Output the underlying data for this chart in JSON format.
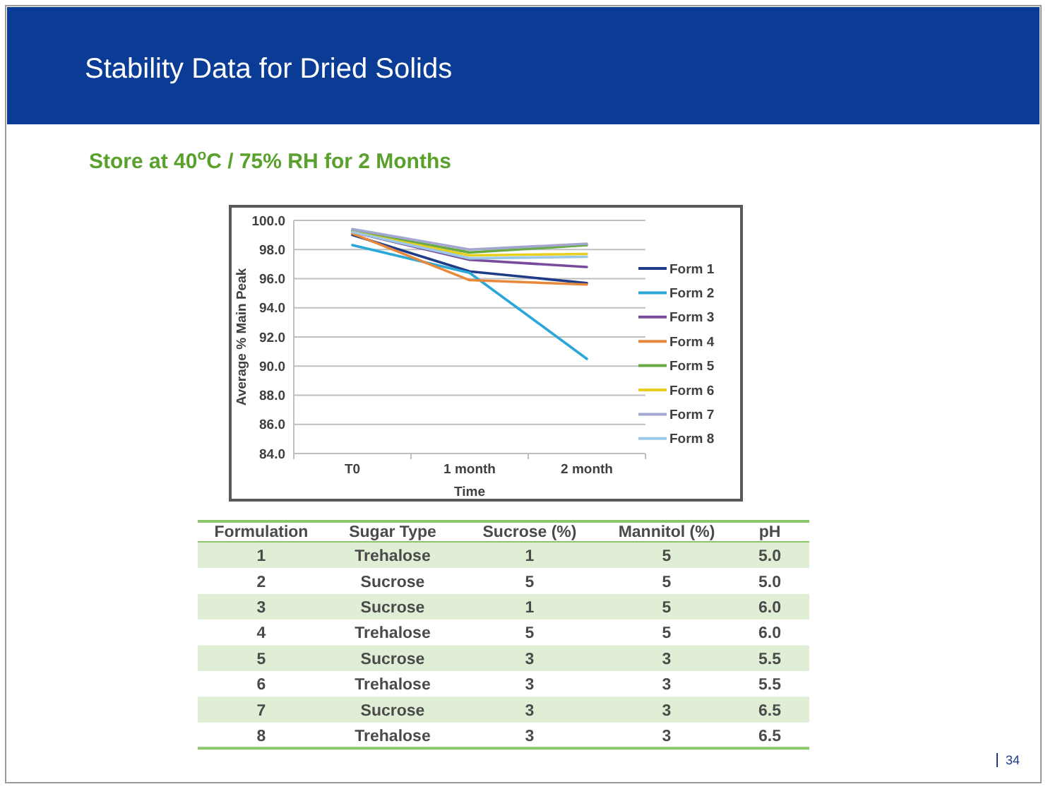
{
  "chart_data": [
    {
      "type": "line",
      "title": "Stability Data for Dried Solids",
      "subtitle": "Store at 40$^{o}$C / 75% RH for 2 Months",
      "xlabel": "Time",
      "ylabel": "Average % Main Peak",
      "categories": [
        "T0",
        "1 month",
        "2 month"
      ],
      "series": [
        {
          "name": "Form 1",
          "color": "#1f3c88",
          "values": [
            99.0,
            96.5,
            95.7
          ]
        },
        {
          "name": "Form 2",
          "color": "#2aa7d8",
          "values": [
            98.3,
            96.4,
            90.5
          ]
        },
        {
          "name": "Form 3",
          "color": "#7a4b9a",
          "values": [
            99.2,
            97.3,
            96.8
          ]
        },
        {
          "name": "Form 4",
          "color": "#e8883a",
          "values": [
            99.1,
            95.9,
            95.6
          ]
        },
        {
          "name": "Form 5",
          "color": "#6aaa45",
          "values": [
            99.3,
            97.8,
            98.3
          ]
        },
        {
          "name": "Form 6",
          "color": "#e8cf1f",
          "values": [
            99.2,
            97.6,
            97.7
          ]
        },
        {
          "name": "Form 7",
          "color": "#a3a7cf",
          "values": [
            99.4,
            98.0,
            98.4
          ]
        },
        {
          "name": "Form 8",
          "color": "#9cc8e8",
          "values": [
            99.2,
            97.4,
            97.5
          ]
        }
      ],
      "ylim": [
        84,
        100
      ],
      "yticks": [
        {
          "value": 84,
          "label": "84.0"
        },
        {
          "value": 86,
          "label": "86.0"
        },
        {
          "value": 88,
          "label": "88.0"
        },
        {
          "value": 90,
          "label": "90.0"
        },
        {
          "value": 92,
          "label": "92.0"
        },
        {
          "value": 94,
          "label": "94.0"
        },
        {
          "value": 96,
          "label": "96.0"
        },
        {
          "value": 98,
          "label": "98.0"
        },
        {
          "value": 100,
          "label": "100.0"
        }
      ],
      "grid": "y",
      "legend": "right",
      "marker": "none",
      "line_style": "solid",
      "annotations": [
        "34"
      ]
    },
    {
      "type": "heatmap",
      "ylabel": "Formulation",
      "categories": [
        "Sugar Type",
        "Sucrose (%)",
        "Mannitol (%)",
        "pH"
      ],
      "y_categories": [
        "1",
        "2",
        "3",
        "4",
        "5",
        "6",
        "7",
        "8"
      ],
      "cells": [
        [
          null,
          null,
          null,
          null
        ],
        [
          null,
          null,
          null,
          null
        ],
        [
          null,
          null,
          null,
          null
        ],
        [
          null,
          null,
          null,
          null
        ],
        [
          null,
          null,
          null,
          null
        ],
        [
          null,
          null,
          null,
          null
        ],
        [
          null,
          null,
          null,
          null
        ],
        [
          null,
          null,
          null,
          null
        ]
      ],
      "cell_labels": [
        [
          "Trehalose",
          "1",
          "5",
          "5.0"
        ],
        [
          "Sucrose",
          "5",
          "5",
          "5.0"
        ],
        [
          "Sucrose",
          "1",
          "5",
          "6.0"
        ],
        [
          "Trehalose",
          "5",
          "5",
          "6.0"
        ],
        [
          "Sucrose",
          "3",
          "3",
          "5.5"
        ],
        [
          "Trehalose",
          "3",
          "3",
          "5.5"
        ],
        [
          "Sucrose",
          "3",
          "3",
          "6.5"
        ],
        [
          "Trehalose",
          "3",
          "3",
          "6.5"
        ]
      ]
    }
  ]
}
